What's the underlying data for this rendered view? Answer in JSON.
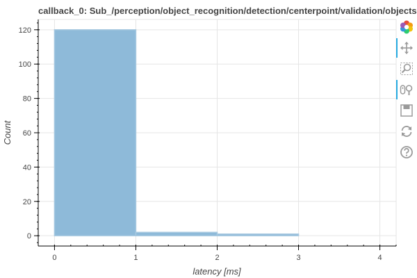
{
  "chart_data": {
    "type": "bar",
    "title": "callback_0: Sub_/perception/object_recognition/detection/centerpoint/validation/objects",
    "xlabel": "latency [ms]",
    "ylabel": "Count",
    "bins": [
      {
        "x0": 0,
        "x1": 1,
        "count": 120
      },
      {
        "x0": 1,
        "x1": 2,
        "count": 2
      },
      {
        "x0": 2,
        "x1": 3,
        "count": 1
      }
    ],
    "xlim": [
      -0.2,
      4.2
    ],
    "ylim": [
      -6,
      126
    ],
    "xticks": [
      0,
      1,
      2,
      3,
      4
    ],
    "yticks": [
      0,
      20,
      40,
      60,
      80,
      100,
      120
    ],
    "grid": true,
    "bar_color": "#8ebad9",
    "bar_edge_color": "#a6c8e0"
  },
  "toolbar": {
    "tools": [
      {
        "name": "bokeh-logo",
        "icon": "bokeh-logo-icon",
        "active": false
      },
      {
        "name": "pan",
        "icon": "pan-icon",
        "active": true
      },
      {
        "name": "box-zoom",
        "icon": "box-zoom-icon",
        "active": false
      },
      {
        "name": "wheel-zoom",
        "icon": "wheel-zoom-icon",
        "active": true
      },
      {
        "name": "save",
        "icon": "save-icon",
        "active": false
      },
      {
        "name": "reset",
        "icon": "reset-icon",
        "active": false
      },
      {
        "name": "help",
        "icon": "help-icon",
        "active": false
      }
    ]
  }
}
